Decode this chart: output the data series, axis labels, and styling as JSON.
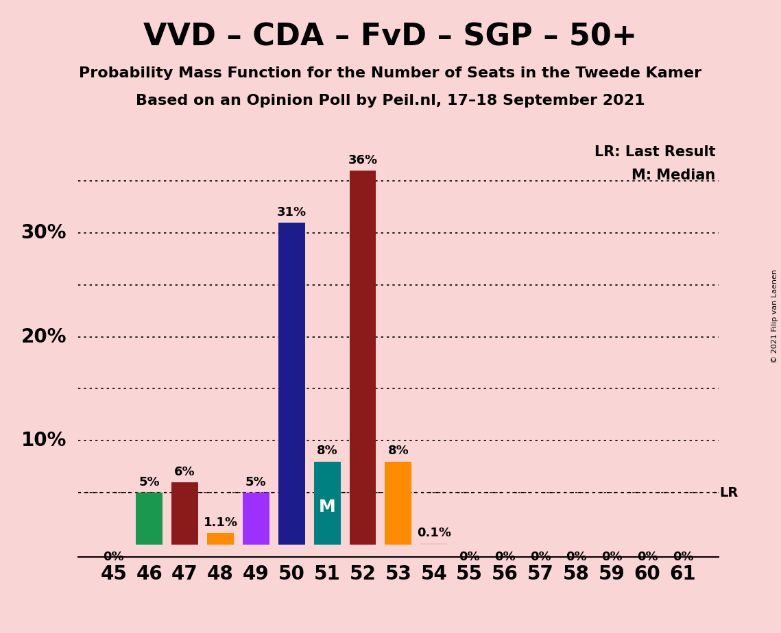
{
  "title": "VVD – CDA – FvD – SGP – 50+",
  "subtitle1": "Probability Mass Function for the Number of Seats in the Tweede Kamer",
  "subtitle2": "Based on an Opinion Poll by Peil.nl, 17–18 September 2021",
  "copyright": "© 2021 Filip van Laenen",
  "seats": [
    45,
    46,
    47,
    48,
    49,
    50,
    51,
    52,
    53,
    54,
    55,
    56,
    57,
    58,
    59,
    60,
    61
  ],
  "values": [
    0.0,
    5.0,
    6.0,
    1.1,
    5.0,
    31.0,
    8.0,
    36.0,
    8.0,
    0.1,
    0.0,
    0.0,
    0.0,
    0.0,
    0.0,
    0.0,
    0.0
  ],
  "labels": [
    "0%",
    "5%",
    "6%",
    "1.1%",
    "5%",
    "31%",
    "8%",
    "36%",
    "8%",
    "0.1%",
    "0%",
    "0%",
    "0%",
    "0%",
    "0%",
    "0%",
    "0%"
  ],
  "bar_colors": [
    "#f2c4c4",
    "#1a9850",
    "#8b1a1a",
    "#ff8c00",
    "#9b30ff",
    "#1c1c8c",
    "#008080",
    "#8b1a1a",
    "#ff8c00",
    "#f2c4c4",
    "#f2c4c4",
    "#f2c4c4",
    "#f2c4c4",
    "#f2c4c4",
    "#f2c4c4",
    "#f2c4c4",
    "#f2c4c4"
  ],
  "median_seat": 51,
  "lr_value": 5.0,
  "background_color": "#f9d5d5",
  "ylim_max": 39,
  "legend_lr": "LR: Last Result",
  "legend_m": "M: Median",
  "lr_label": "LR",
  "ylabel_ticks": [
    10,
    20,
    30
  ],
  "grid_lines": [
    5,
    10,
    15,
    20,
    25,
    30,
    35
  ],
  "title_fontsize": 32,
  "subtitle_fontsize": 16,
  "bar_label_fontsize": 13,
  "axis_label_fontsize": 20
}
